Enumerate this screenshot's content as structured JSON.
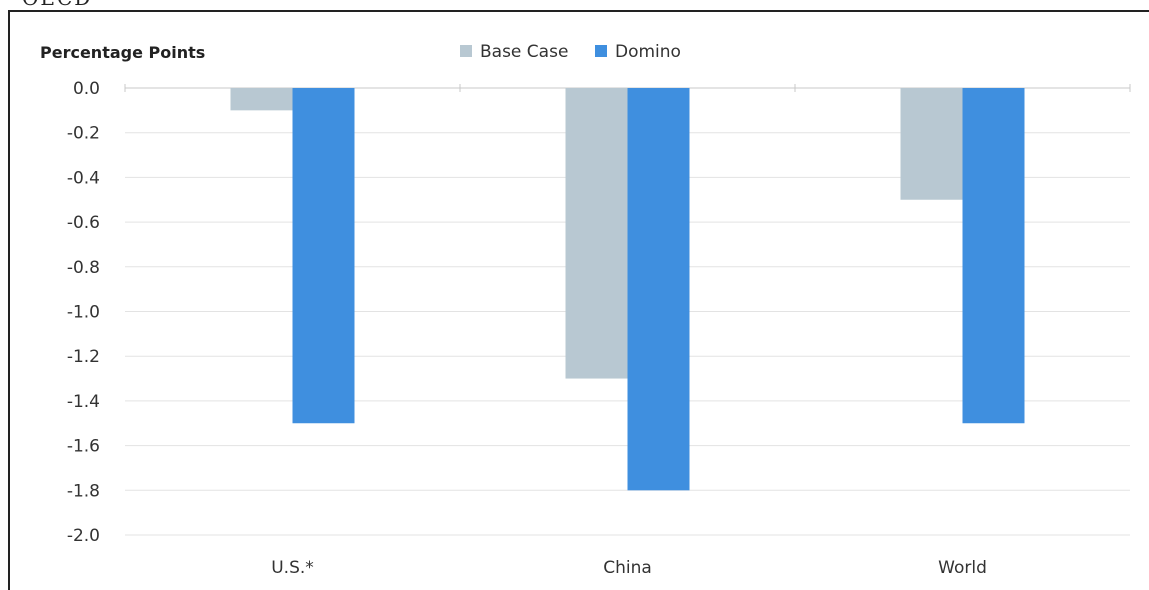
{
  "source_text": "OECD",
  "chart_data": {
    "type": "bar",
    "ylabel": "Percentage Points",
    "categories": [
      "U.S.*",
      "China",
      "World"
    ],
    "series": [
      {
        "name": "Base Case",
        "color": "#b8c8d2",
        "values": [
          -0.1,
          -1.3,
          -0.5
        ]
      },
      {
        "name": "Domino",
        "color": "#3f8fdf",
        "values": [
          -1.5,
          -1.8,
          -1.5
        ]
      }
    ],
    "ylim": [
      -2.0,
      0.0
    ],
    "yticks": [
      "0.0",
      "-0.2",
      "-0.4",
      "-0.6",
      "-0.8",
      "-1.0",
      "-1.2",
      "-1.4",
      "-1.6",
      "-1.8",
      "-2.0"
    ],
    "ytick_values": [
      0.0,
      -0.2,
      -0.4,
      -0.6,
      -0.8,
      -1.0,
      -1.2,
      -1.4,
      -1.6,
      -1.8,
      -2.0
    ],
    "grid": true,
    "legend_position": "top-center"
  }
}
